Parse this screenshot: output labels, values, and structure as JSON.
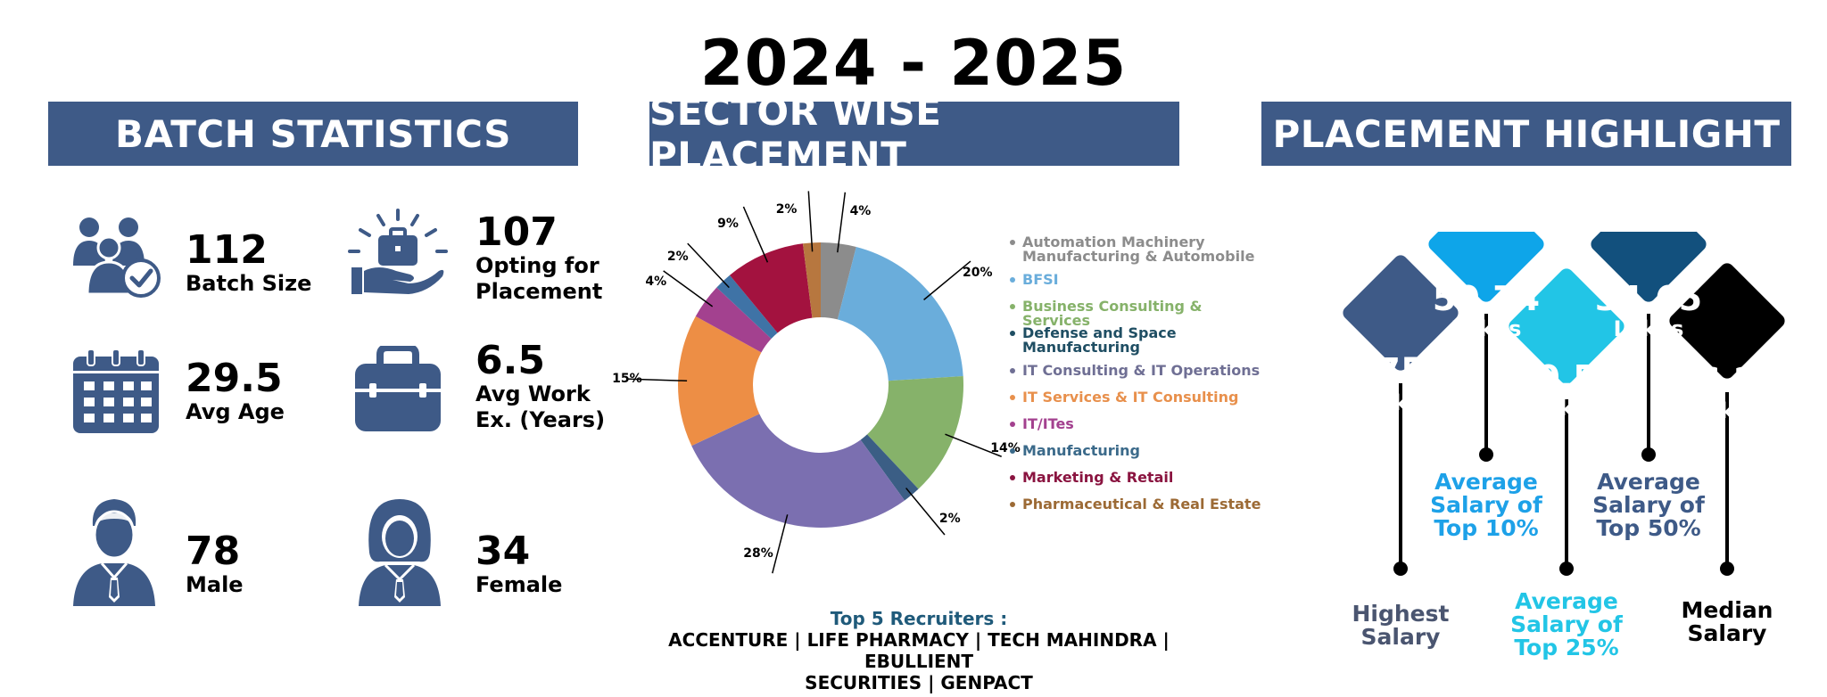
{
  "title": "2024 - 2025",
  "banners": {
    "batch": "BATCH STATISTICS",
    "sector": "SECTOR WISE PLACEMENT",
    "highlight": "PLACEMENT HIGHLIGHT"
  },
  "batch_stats": {
    "batch_size": {
      "value": "112",
      "label": "Batch Size"
    },
    "opting": {
      "value": "107",
      "label_1": "Opting for",
      "label_2": "Placement"
    },
    "avg_age": {
      "value": "29.5",
      "label": "Avg Age"
    },
    "work_ex": {
      "value": "6.5",
      "label_1": "Avg Work",
      "label_2": "Ex. (Years)"
    },
    "male": {
      "value": "78",
      "label": "Male"
    },
    "female": {
      "value": "34",
      "label": "Female"
    }
  },
  "icons": [
    "group-check-icon",
    "hand-briefcase-icon",
    "calendar-icon",
    "briefcase-icon",
    "male-avatar-icon",
    "female-avatar-icon"
  ],
  "chart_data": {
    "type": "pie",
    "categories": [
      "Automation Machinery Manufacturing & Automobile",
      "BFSI",
      "Business Consulting & Services",
      "Defense and Space Manufacturing",
      "IT Consulting & IT Operations",
      "IT Services & IT Consulting",
      "IT/ITes",
      "Manufacturing",
      "Marketing & Retail",
      "Pharmaceutical & Real Estate"
    ],
    "values": [
      4,
      20,
      14,
      2,
      28,
      15,
      4,
      2,
      9,
      2
    ],
    "labels": [
      "4%",
      "20%",
      "14%",
      "2%",
      "28%",
      "15%",
      "4%",
      "2%",
      "9%",
      "2%"
    ],
    "colors": [
      "#8c8c8c",
      "#6aaddb",
      "#86b26a",
      "#3b5e85",
      "#7b6fb0",
      "#ed8e45",
      "#a3418f",
      "#3f73a6",
      "#a3123f",
      "#b7773f"
    ],
    "legend_lines": [
      [
        "Automation Machinery",
        "Manufacturing & Automobile"
      ],
      [
        "BFSI"
      ],
      [
        "Business Consulting & Services"
      ],
      [
        "Defense and Space",
        "Manufacturing"
      ],
      [
        "IT Consulting & IT Operations"
      ],
      [
        "IT Services & IT Consulting"
      ],
      [
        "IT/ITes"
      ],
      [
        "Manufacturing"
      ],
      [
        "Marketing & Retail"
      ],
      [
        "Pharmaceutical & Real Estate"
      ]
    ],
    "legend_colors": [
      "#8c8c8c",
      "#6aaddb",
      "#86b26a",
      "#1f4e63",
      "#6f6f94",
      "#e8904c",
      "#a3418f",
      "#3b6a8a",
      "#8a1440",
      "#9c6a35"
    ],
    "legend_placement": "right",
    "donut": true
  },
  "recruiters": {
    "title": "Top 5 Recruiters :",
    "line_1": "ACCENTURE | LIFE PHARMACY | TECH MAHINDRA | EBULLIENT",
    "line_2": "SECURITIES | GENPACT"
  },
  "highlights": [
    {
      "value": "75",
      "unit": "Lakhs",
      "caption_1": "Highest",
      "caption_2": "Salary",
      "color": "#3e5a87",
      "caption_color": "#4a5570"
    },
    {
      "value": "50.74",
      "unit": "Lakhs",
      "caption_1": "Average",
      "caption_2": "Salary of",
      "caption_3": "Top 10%",
      "color": "#0ea5e9",
      "caption_color": "#1da1e8"
    },
    {
      "value": "40.58",
      "unit": "Lakhs",
      "caption_1": "Average",
      "caption_2": "Salary of",
      "caption_3": "Top 25%",
      "color": "#22c5e6",
      "caption_color": "#22c5e6"
    },
    {
      "value": "34.65",
      "unit": "Lakhs",
      "caption_1": "Average",
      "caption_2": "Salary of",
      "caption_3": "Top 50%",
      "color": "#12507d",
      "caption_color": "#3e5a87"
    },
    {
      "value": "26.25",
      "unit": "Lakhs",
      "caption_1": "Median",
      "caption_2": "Salary",
      "color": "#000000",
      "caption_color": "#000000"
    }
  ]
}
